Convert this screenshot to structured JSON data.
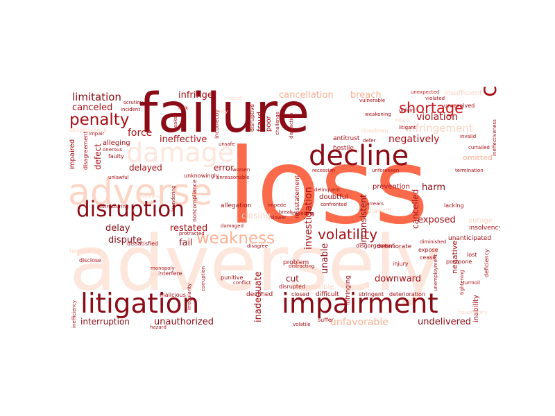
{
  "palette": {
    "darkest": "#8b0c16",
    "dark": "#a50f15",
    "mid": "#cb181d",
    "orange": "#fb6a4a",
    "light": "#fcae91",
    "pale": "#fcd5c4",
    "faint": "#fde6dc"
  },
  "words": {
    "loss": "loss",
    "adversely": "adversely",
    "failure": "failure",
    "adverse": "adverse",
    "litigation": "litigation",
    "impairment": "impairment",
    "decline": "decline",
    "damage": "damage",
    "disruption": "disruption",
    "critical": "critical",
    "weakness": "weakness",
    "penalty": "penalty",
    "shortage": "shortage",
    "volatility": "volatility",
    "limitation": "limitation",
    "cancellation": "cancellation",
    "breach": "breach",
    "infringement": "infringement",
    "violation": "violation",
    "negatively": "negatively",
    "canceled": "canceled",
    "force": "force",
    "ineffective": "ineffective",
    "infringe": "infringe",
    "delayed": "delayed",
    "error": "error",
    "delay": "delay",
    "restated": "restated",
    "dispute": "dispute",
    "fail": "fail",
    "investigation": "investigation",
    "inconsistent": "inconsistent",
    "cancelled": "cancelled",
    "exposed": "exposed",
    "harm": "harm",
    "unable": "unable",
    "downward": "downward",
    "cut": "cut",
    "inadequate": "inadequate",
    "interruption": "interruption",
    "unauthorized": "unauthorized",
    "unfavorable": "unfavorable",
    "undelivered": "undelivered",
    "negative": "negative",
    "inability": "inability",
    "omitted": "omitted",
    "defect": "defect",
    "impaired": "impaired",
    "fraud": "fraud",
    "poor": "poor",
    "antitrust": "antitrust",
    "hostile": "hostile",
    "prevention": "prevention",
    "doubtful": "doubtful",
    "closing": "closing",
    "allegation": "allegation",
    "problem": "problem",
    "impossible": "impossible",
    "difficult": "difficult",
    "declined": "declined",
    "malicious": "malicious",
    "punitive": "punitive",
    "stringent": "stringent",
    "deterioration": "deterioration",
    "suffer": "suffer",
    "volatile": "volatile",
    "closed": "closed",
    "disrupted": "disrupted",
    "deteriorate": "deteriorate",
    "postpone": "postpone",
    "expose": "expose",
    "injury": "injury",
    "cease": "cease",
    "lost": "lost",
    "insolvency": "insolvency",
    "unanticipated": "unanticipated",
    "deficiency": "deficiency",
    "diminished": "diminished",
    "lacking": "lacking",
    "arrears": "arrears",
    "plaintiff": "plaintiff",
    "impede": "impede",
    "impeding": "impeding",
    "slower": "slower",
    "confronted": "confronted",
    "break": "break",
    "delinquent": "delinquent",
    "recession": "recession",
    "unforeseen": "unforeseen",
    "termination": "termination",
    "curtailed": "curtailed",
    "invalid": "invalid",
    "incorrectly": "incorrectly",
    "disruptive": "disruptive",
    "challenge": "challenge",
    "distraction": "distraction",
    "defer": "defer",
    "litigant": "litigant",
    "weakening": "weakening",
    "vulnerable": "vulnerable",
    "failed": "failed",
    "unfair": "unfair",
    "unexpected": "unexpected",
    "insufficient": "insufficient",
    "unresolved": "unresolved",
    "violated": "violated",
    "ineffectiveness": "ineffectiveness",
    "alleging": "alleging",
    "faulty": "faulty",
    "onerous": "onerous",
    "unlawful": "unlawful",
    "impair": "impair",
    "incident": "incident",
    "scrutiny": "scrutiny",
    "weaken": "weaken",
    "lack": "lack",
    "recall": "recall",
    "risky": "risky",
    "interfere": "interfere",
    "obsolescence": "obsolescence",
    "concern": "concern",
    "disagreement": "disagreement",
    "unknowingly": "unknowingly",
    "unreasonable": "unreasonable",
    "worsen": "worsen",
    "unsafe": "unsafe",
    "noncompliance": "noncompliance",
    "laundering": "laundering",
    "restructuring": "restructuring",
    "damaged": "damaged",
    "protracted": "protracted",
    "dissatisfied": "dissatisfied",
    "disagree": "disagree",
    "disclose": "disclose",
    "terminated": "terminated",
    "monopoly": "monopoly",
    "lapse": "lapse",
    "irregularity": "irregularity",
    "corruption": "corruption",
    "conflict": "conflict",
    "inefficiency": "inefficiency",
    "hazard": "hazard",
    "distracting": "distracting",
    "unemployment": "unemployment",
    "turmoil": "turmoil",
    "tightening": "tightening",
    "fraudulently": "fraudulently",
    "outage": "outage",
    "disgorgement": "disgorgement",
    "infringing": "infringing",
    "misstatement": "misstatement",
    "slowdown": "slowdown"
  }
}
